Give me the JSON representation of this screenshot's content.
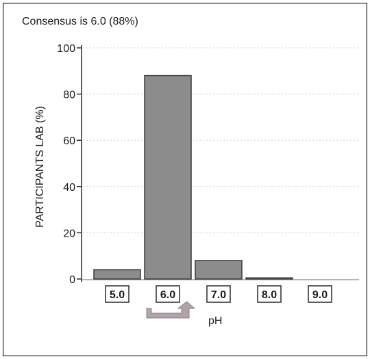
{
  "colors": {
    "frame": "#2a2a2a",
    "background": "#ffffff",
    "bar_fill": "#8c8c8c",
    "bar_stroke": "#3a3a3a",
    "grid": "#d8c8c8",
    "arrow": "#b0a4aa",
    "arrow_stroke": "#8a7f86",
    "text": "#1a1a1a"
  },
  "chart_data": {
    "type": "bar",
    "title": "Consensus is 6.0 (88%)",
    "xlabel": "pH",
    "ylabel": "PARTICIPANTS LAB (%)",
    "categories": [
      "5.0",
      "6.0",
      "7.0",
      "8.0",
      "9.0"
    ],
    "values": [
      4,
      88,
      8,
      0.5,
      0
    ],
    "ylim": [
      0,
      100
    ],
    "yticks": [
      0,
      20,
      40,
      60,
      80,
      100
    ],
    "grid": true,
    "highlight_category": "6.0"
  }
}
